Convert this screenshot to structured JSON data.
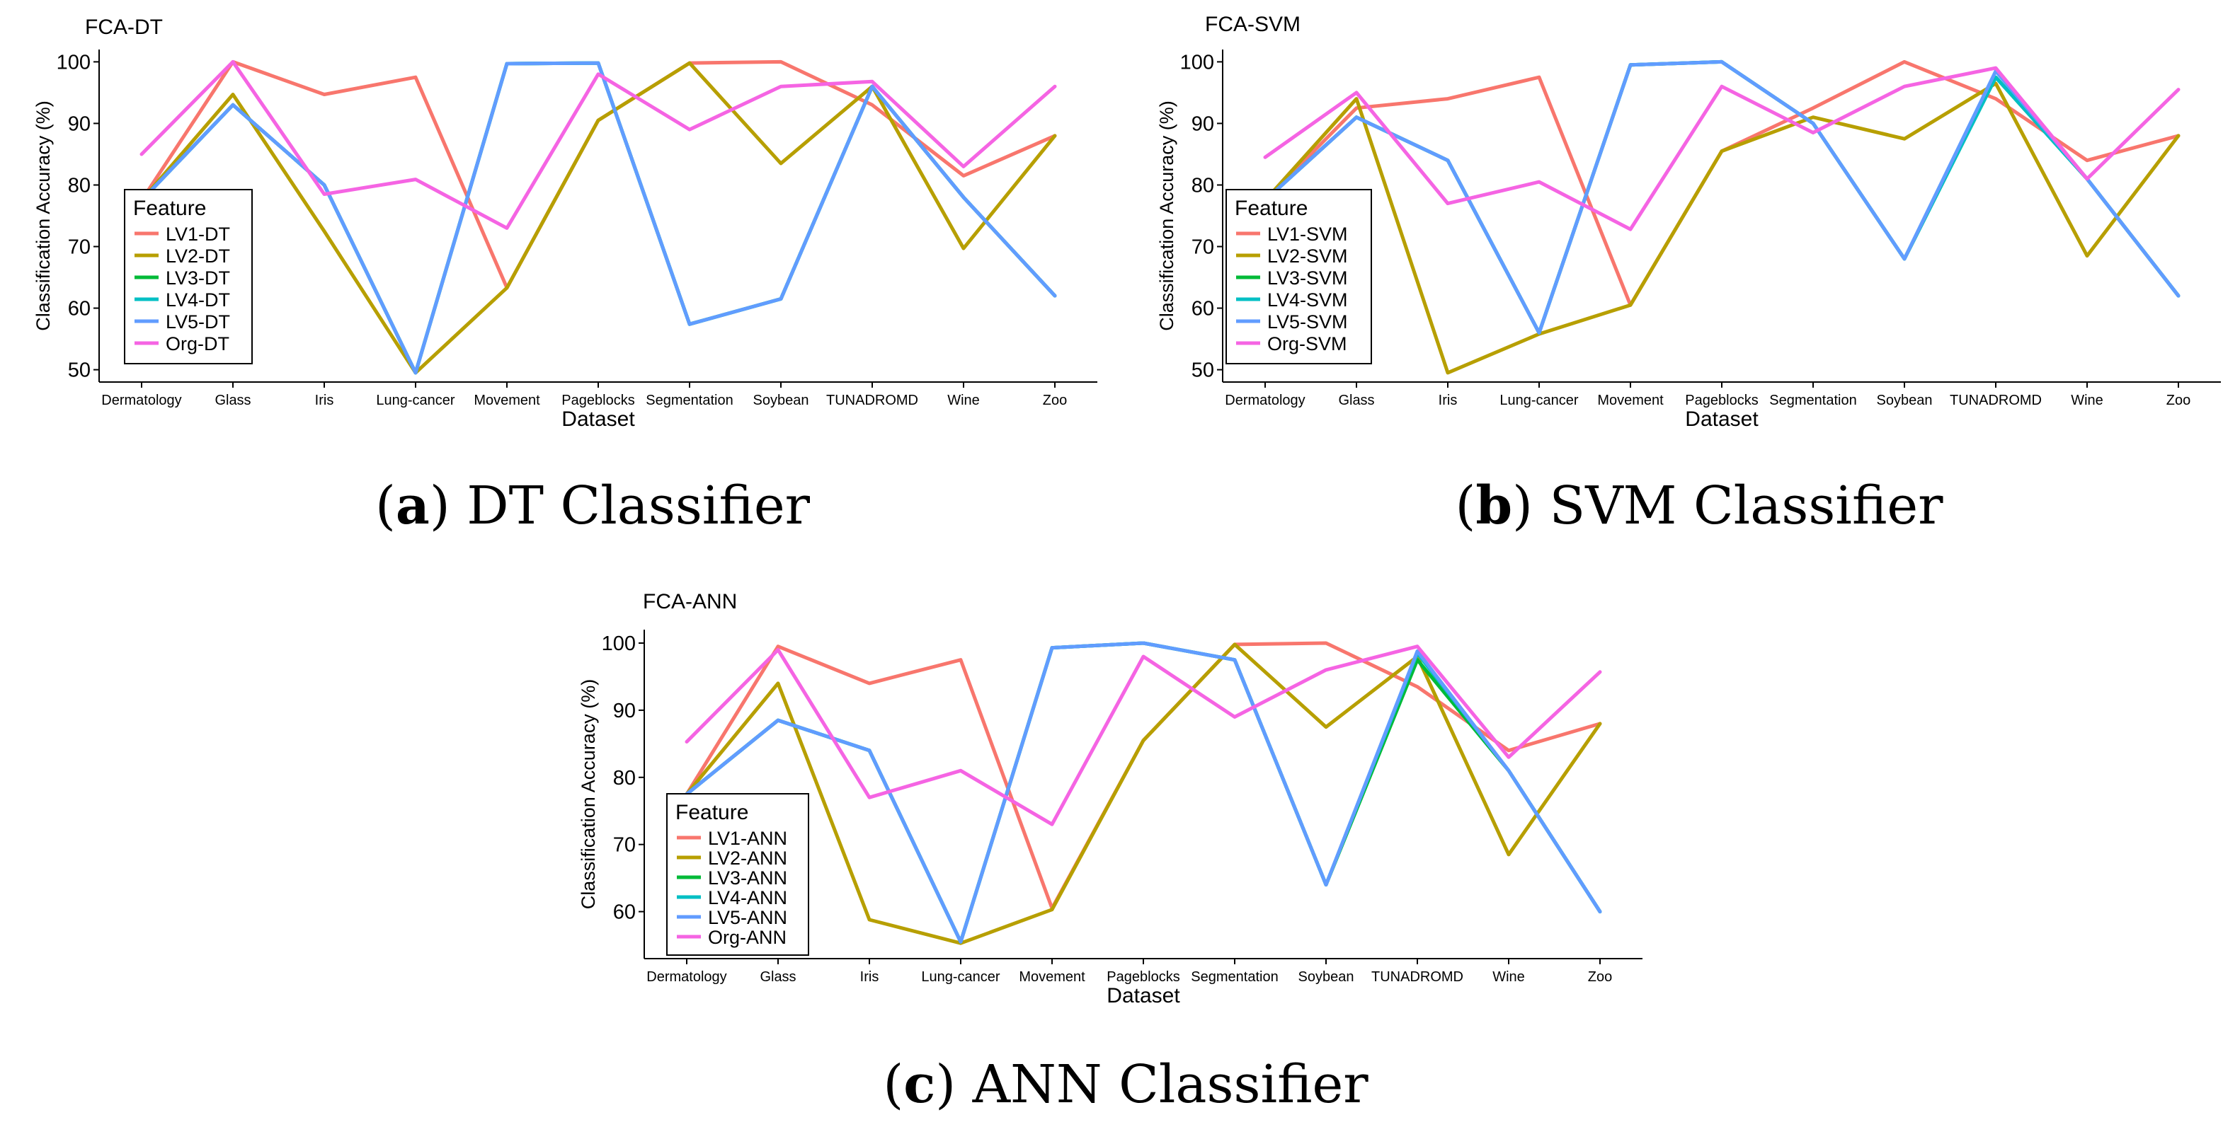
{
  "captions": [
    {
      "letter": "a",
      "text": "DT Classifier"
    },
    {
      "letter": "b",
      "text": "SVM Classifier"
    },
    {
      "letter": "c",
      "text": "ANN Classifier"
    }
  ],
  "chart_data": [
    {
      "type": "line",
      "title": "FCA-DT",
      "xlabel": "Dataset",
      "ylabel": "Classification Accuracy (%)",
      "ylim": [
        48,
        102
      ],
      "yticks": [
        50,
        60,
        70,
        80,
        90,
        100
      ],
      "legend_title": "Feature",
      "legend_position": "bottom-left",
      "categories": [
        "Dermatology",
        "Glass",
        "Iris",
        "Lung-cancer",
        "Movement",
        "Pageblocks",
        "Segmentation",
        "Soybean",
        "TUNADROMD",
        "Wine",
        "Zoo"
      ],
      "series": [
        {
          "name": "LV1-DT",
          "color": "#F8766D",
          "values": [
            77.5,
            100,
            94.7,
            97.5,
            63.3,
            90.5,
            99.8,
            100,
            93.0,
            81.5,
            88.0
          ]
        },
        {
          "name": "LV2-DT",
          "color": "#B79F00",
          "values": [
            77.5,
            94.7,
            72.5,
            49.5,
            63.3,
            90.5,
            99.8,
            83.5,
            96.0,
            69.7,
            88.0
          ]
        },
        {
          "name": "LV3-DT",
          "color": "#00BA38",
          "values": [
            77.5,
            93.0,
            80.0,
            49.5,
            99.7,
            99.8,
            57.4,
            61.5,
            96.0,
            78.0,
            62.0
          ]
        },
        {
          "name": "LV4-DT",
          "color": "#00BFC4",
          "values": [
            77.5,
            93.0,
            80.0,
            49.5,
            99.7,
            99.8,
            57.4,
            61.5,
            96.0,
            78.0,
            62.0
          ]
        },
        {
          "name": "LV5-DT",
          "color": "#619CFF",
          "values": [
            77.5,
            93.0,
            80.0,
            49.5,
            99.7,
            99.8,
            57.4,
            61.5,
            96.0,
            78.0,
            62.0
          ]
        },
        {
          "name": "Org-DT",
          "color": "#F564E3",
          "values": [
            85.0,
            100,
            78.5,
            80.9,
            73.0,
            98.0,
            89.0,
            96.0,
            96.8,
            83.0,
            96.0
          ]
        }
      ]
    },
    {
      "type": "line",
      "title": "FCA-SVM",
      "xlabel": "Dataset",
      "ylabel": "Classification Accuracy (%)",
      "ylim": [
        48,
        102
      ],
      "yticks": [
        50,
        60,
        70,
        80,
        90,
        100
      ],
      "legend_title": "Feature",
      "legend_position": "bottom-left",
      "categories": [
        "Dermatology",
        "Glass",
        "Iris",
        "Lung-cancer",
        "Movement",
        "Pageblocks",
        "Segmentation",
        "Soybean",
        "TUNADROMD",
        "Wine",
        "Zoo"
      ],
      "series": [
        {
          "name": "LV1-SVM",
          "color": "#F8766D",
          "values": [
            77.5,
            92.5,
            94.0,
            97.5,
            60.5,
            85.5,
            92.5,
            100,
            94.0,
            84.0,
            88.0
          ]
        },
        {
          "name": "LV2-SVM",
          "color": "#B79F00",
          "values": [
            77.5,
            94.0,
            49.5,
            55.8,
            60.5,
            85.5,
            91.0,
            87.5,
            96.5,
            68.5,
            88.0
          ]
        },
        {
          "name": "LV3-SVM",
          "color": "#00BA38",
          "values": [
            77.5,
            91.0,
            84.0,
            56.0,
            99.5,
            100,
            90.0,
            68.0,
            97.5,
            81.0,
            62.0
          ]
        },
        {
          "name": "LV4-SVM",
          "color": "#00BFC4",
          "values": [
            77.5,
            91.0,
            84.0,
            56.0,
            99.5,
            100,
            90.0,
            68.0,
            97.5,
            81.0,
            62.0
          ]
        },
        {
          "name": "LV5-SVM",
          "color": "#619CFF",
          "values": [
            77.5,
            91.0,
            84.0,
            56.0,
            99.5,
            100,
            90.0,
            68.0,
            98.5,
            81.0,
            62.0
          ]
        },
        {
          "name": "Org-SVM",
          "color": "#F564E3",
          "values": [
            84.5,
            95.0,
            77.0,
            80.5,
            72.8,
            96.0,
            88.5,
            96.0,
            99.0,
            81.0,
            95.5
          ]
        }
      ]
    },
    {
      "type": "line",
      "title": "FCA-ANN",
      "xlabel": "Dataset",
      "ylabel": "Classification Accuracy (%)",
      "ylim": [
        53,
        102
      ],
      "yticks": [
        60,
        70,
        80,
        90,
        100
      ],
      "legend_title": "Feature",
      "legend_position": "bottom-left",
      "categories": [
        "Dermatology",
        "Glass",
        "Iris",
        "Lung-cancer",
        "Movement",
        "Pageblocks",
        "Segmentation",
        "Soybean",
        "TUNADROMD",
        "Wine",
        "Zoo"
      ],
      "series": [
        {
          "name": "LV1-ANN",
          "color": "#F8766D",
          "values": [
            77.5,
            99.5,
            94.0,
            97.5,
            60.5,
            85.5,
            99.8,
            100,
            93.5,
            84.0,
            88.0
          ]
        },
        {
          "name": "LV2-ANN",
          "color": "#B79F00",
          "values": [
            77.5,
            94.0,
            58.8,
            55.3,
            60.3,
            85.5,
            99.8,
            87.5,
            98.0,
            68.5,
            88.0
          ]
        },
        {
          "name": "LV3-ANN",
          "color": "#00BA38",
          "values": [
            77.5,
            88.5,
            84.0,
            55.5,
            99.3,
            100,
            97.5,
            64.0,
            97.5,
            81.0,
            60.0
          ]
        },
        {
          "name": "LV4-ANN",
          "color": "#00BFC4",
          "values": [
            77.5,
            88.5,
            84.0,
            55.5,
            99.3,
            100,
            97.5,
            64.0,
            98.5,
            81.0,
            60.0
          ]
        },
        {
          "name": "LV5-ANN",
          "color": "#619CFF",
          "values": [
            77.5,
            88.5,
            84.0,
            55.5,
            99.3,
            100,
            97.5,
            64.0,
            98.8,
            81.0,
            60.0
          ]
        },
        {
          "name": "Org-ANN",
          "color": "#F564E3",
          "values": [
            85.3,
            99.0,
            77.0,
            81.0,
            73.0,
            98.0,
            89.0,
            96.0,
            99.5,
            83.0,
            95.7
          ]
        }
      ]
    }
  ]
}
